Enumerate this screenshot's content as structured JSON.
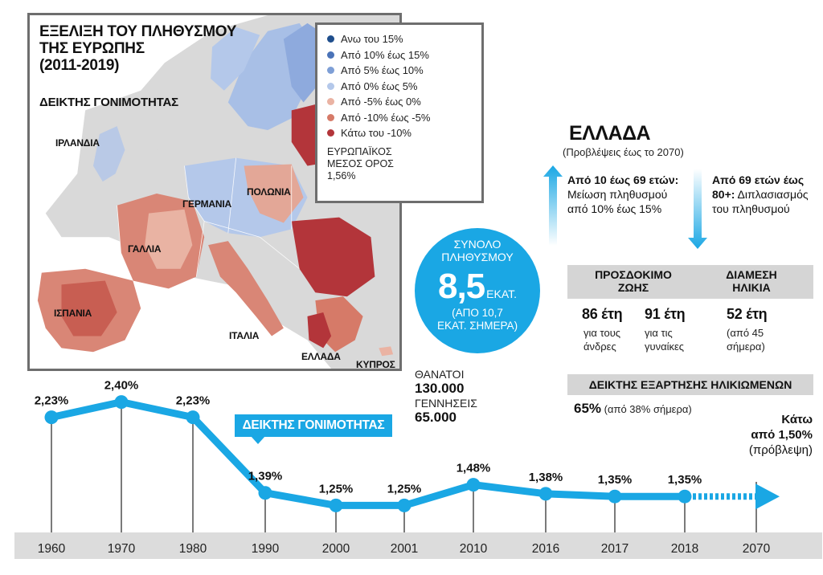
{
  "map": {
    "title_lines": [
      "ΕΞΕΛΙΞΗ ΤΟΥ ΠΛΗΘΥΣΜΟΥ",
      "ΤΗΣ ΕΥΡΩΠΗΣ",
      "(2011-2019)"
    ],
    "subtitle": "ΔΕΙΚΤΗΣ ΓΟΝΙΜΟΤΗΤΑΣ",
    "countries": {
      "ireland": "ΙΡΛΑΝΔΙΑ",
      "germany": "ΓΕΡΜΑΝΙΑ",
      "poland": "ΠΟΛΩΝΙΑ",
      "france": "ΓΑΛΛΙΑ",
      "spain": "ΙΣΠΑΝΙΑ",
      "italy": "ΙΤΑΛΙΑ",
      "greece": "ΕΛΛΑΔΑ",
      "cyprus": "ΚΥΠΡΟΣ"
    },
    "legend": [
      {
        "label": "Ανω του 15%",
        "color": "#1f4e8c"
      },
      {
        "label": "Από 10% έως 15%",
        "color": "#4a73b8"
      },
      {
        "label": "Από 5% έως 10%",
        "color": "#7e9fd6"
      },
      {
        "label": "Από 0% έως 5%",
        "color": "#b4c8ea"
      },
      {
        "label": "Από -5% έως 0%",
        "color": "#eab3a3"
      },
      {
        "label": "Από -10% έως -5%",
        "color": "#d67a68"
      },
      {
        "label": "Κάτω του -10%",
        "color": "#b3353a"
      }
    ],
    "eu_average": [
      "ΕΥΡΩΠΑΪΚΟΣ",
      "ΜΕΣΟΣ ΟΡΟΣ",
      "1,56%"
    ]
  },
  "greece": {
    "title": "ΕΛΛΑΔΑ",
    "subtitle": "(Προβλέψεις έως το 2070)",
    "left_bold": "Από 10 έως 69 ετών:",
    "left_text": "Μείωση πληθυσμού από 10% έως 15%",
    "right_bold": "Από 69 ετών έως 80+:",
    "right_text": "Διπλασιασμός του πληθυσμού",
    "population": {
      "label_1": "ΣΥΝΟΛΟ",
      "label_2": "ΠΛΗΘΥΣΜΟΥ",
      "value": "8,5",
      "unit": "ΕΚΑΤ.",
      "note_1": "(ΑΠΟ 10,7",
      "note_2": "ΕΚΑΤ. ΣΗΜΕΡΑ)"
    },
    "life_expectancy": {
      "header_1": "ΠΡΟΣΔΟΚΙΜΟ",
      "header_2": "ΖΩΗΣ",
      "men_value": "86 έτη",
      "men_label_1": "για τους",
      "men_label_2": "άνδρες",
      "women_value": "91 έτη",
      "women_label_1": "για τις",
      "women_label_2": "γυναίκες"
    },
    "median_age": {
      "header_1": "ΔΙΑΜΕΣΗ",
      "header_2": "ΗΛΙΚΙΑ",
      "value": "52 έτη",
      "note_1": "(από 45",
      "note_2": "σήμερα)"
    },
    "dependency": {
      "header": "ΔΕΙΚΤΗΣ ΕΞΑΡΤΗΣΗΣ ΗΛΙΚΙΩΜΕΝΩΝ",
      "value": "65%",
      "note": "(από 38% σήμερα)"
    },
    "deaths_label": "ΘΑΝΑΤΟΙ",
    "deaths_value": "130.000",
    "births_label": "ΓΕΝΝΗΣΕΙΣ",
    "births_value": "65.000"
  },
  "chart_data": {
    "type": "line",
    "title": "ΔΕΙΚΤΗΣ ΓΟΝΙΜΟΤΗΤΑΣ",
    "categories": [
      "1960",
      "1970",
      "1980",
      "1990",
      "2000",
      "2001",
      "2010",
      "2016",
      "2017",
      "2018",
      "2070"
    ],
    "series": [
      {
        "values": [
          2.23,
          2.4,
          2.23,
          1.39,
          1.25,
          1.25,
          1.48,
          1.38,
          1.35,
          1.35,
          null
        ],
        "labels": [
          "2,23%",
          "2,40%",
          "2,23%",
          "1,39%",
          "1,25%",
          "1,25%",
          "1,48%",
          "1,38%",
          "1,35%",
          "1,35%",
          ""
        ]
      }
    ],
    "projection": {
      "category": "2070",
      "label_1": "Κάτω",
      "label_2": "από 1,50%",
      "label_3": "(πρόβλεψη)"
    },
    "ylim": [
      1.2,
      2.45
    ],
    "line_color": "#1aa7e4"
  }
}
